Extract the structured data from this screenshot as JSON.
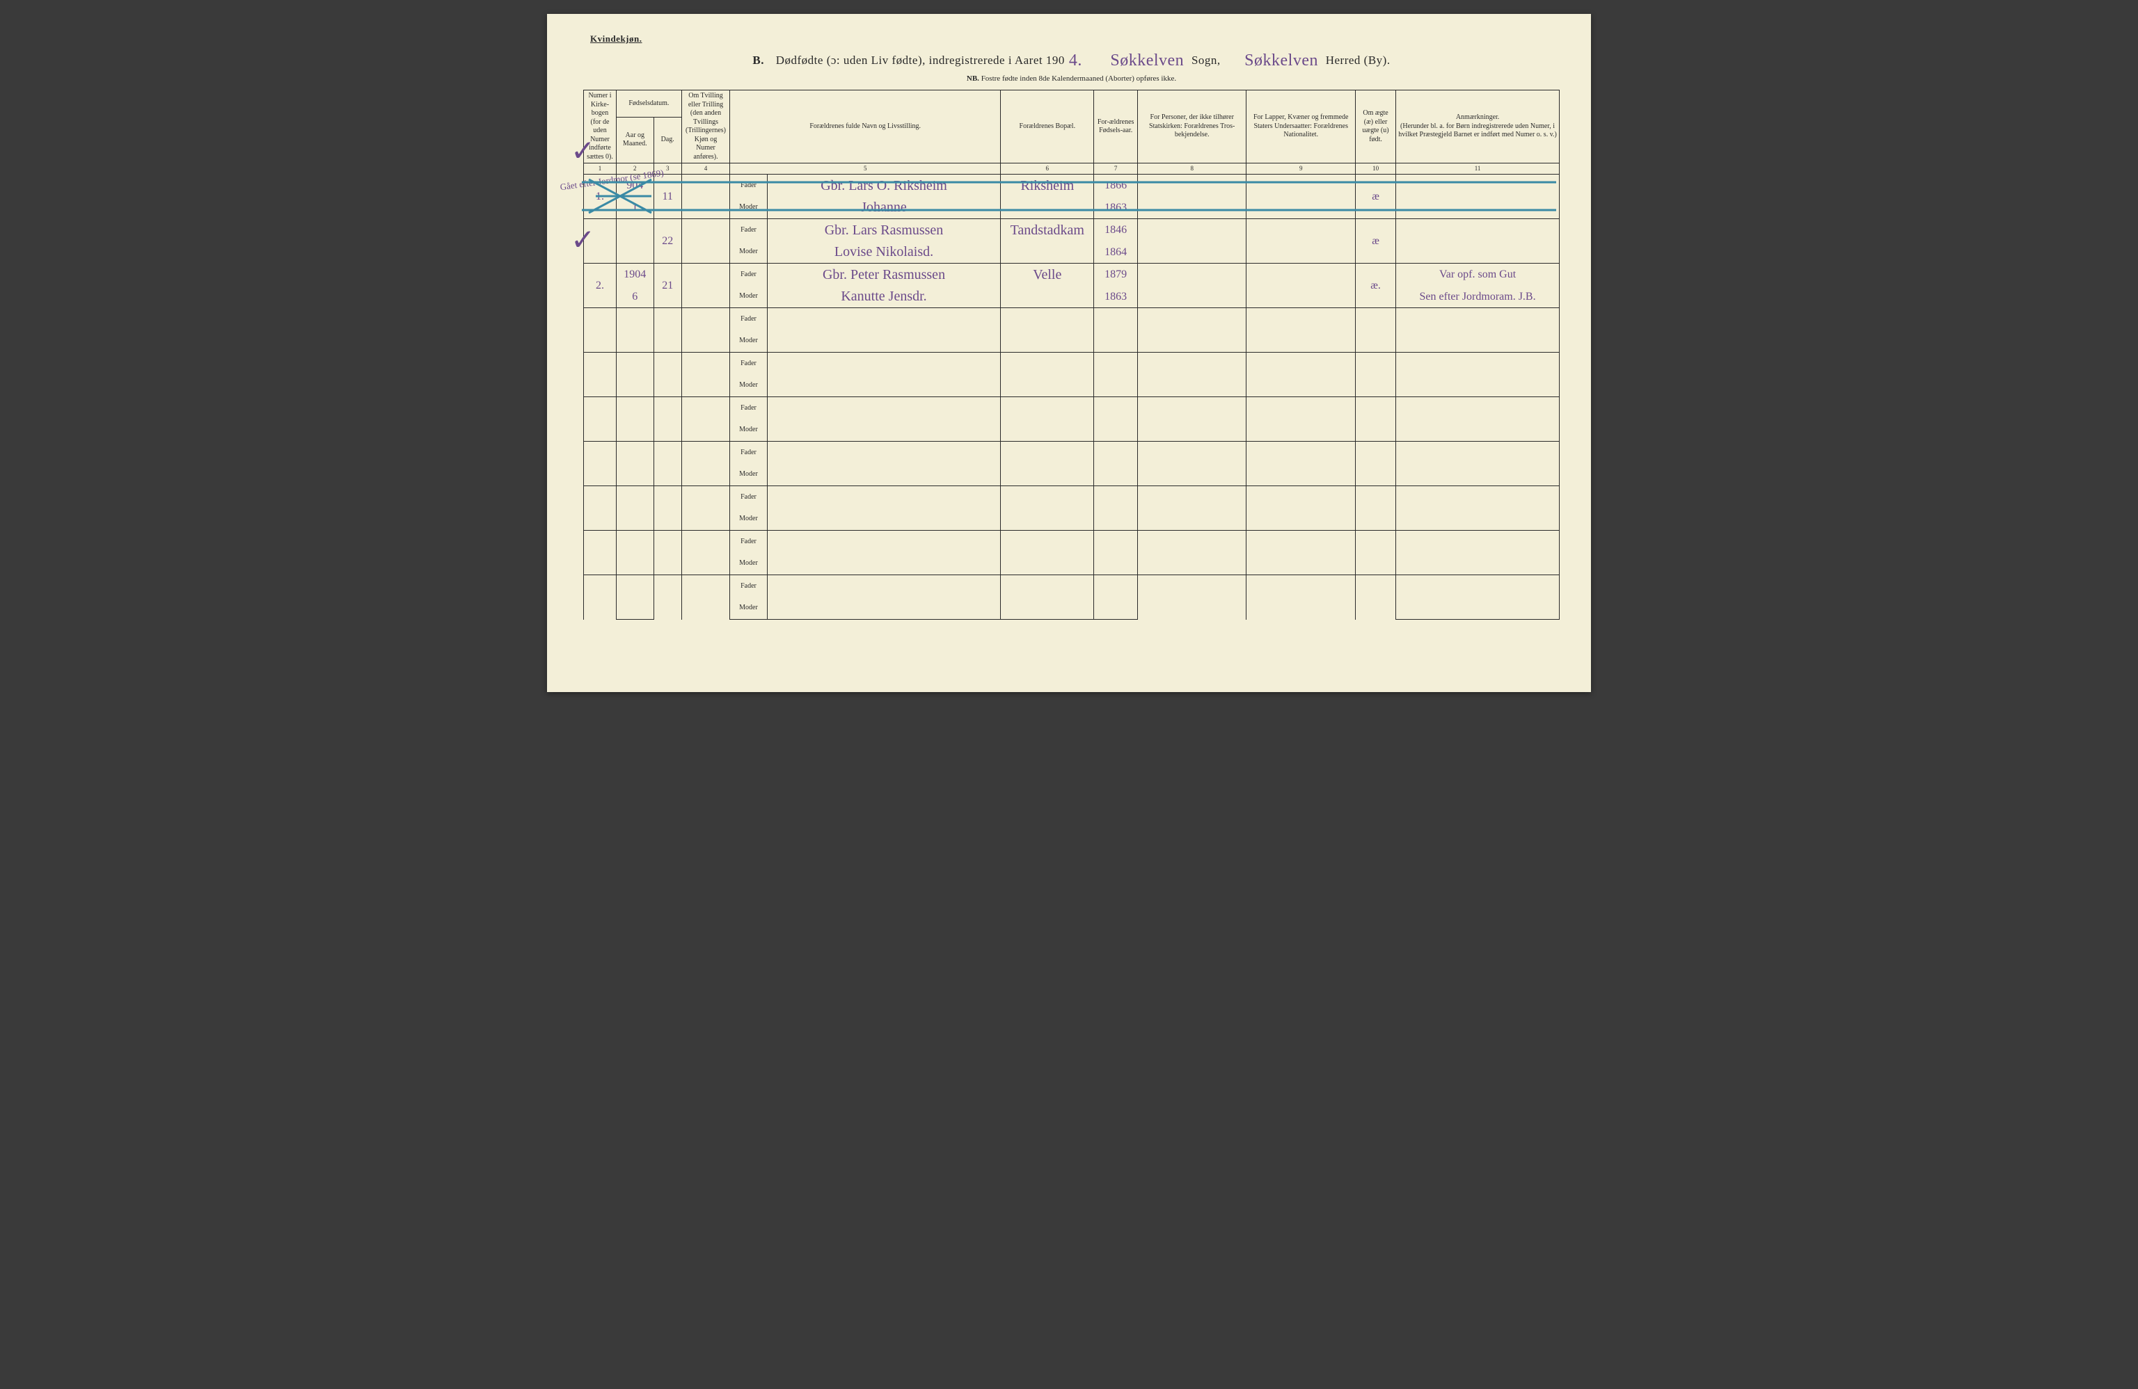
{
  "page": {
    "background_color": "#f3efd8",
    "ink_color": "#2a2a2a",
    "handwriting_color": "#6b4a8a",
    "strike_color": "#3a8aa5"
  },
  "header": {
    "gender": "Kvindekjøn.",
    "section_letter": "B.",
    "title_main": "Dødfødte (ɔ: uden Liv fødte), indregistrerede i Aaret 190",
    "year_suffix": "4.",
    "sogn_hw": "Søkkelven",
    "sogn_label": "Sogn,",
    "herred_hw": "Søkkelven",
    "herred_label": "Herred (By).",
    "subtitle_prefix": "NB.",
    "subtitle": "Fostre fødte inden 8de Kalendermaaned (Aborter) opføres ikke."
  },
  "columns": {
    "c1": "Numer i Kirke-bogen (for de uden Numer indførte sættes 0).",
    "c23_top": "Fødselsdatum.",
    "c2": "Aar og Maaned.",
    "c3": "Dag.",
    "c4": "Om Tvilling eller Trilling (den anden Tvillings (Trillingernes) Kjøn og Numer anføres).",
    "c5": "Forældrenes fulde Navn og Livsstilling.",
    "c6": "Forældrenes Bopæl.",
    "c7": "For-ældrenes Fødsels-aar.",
    "c8": "For Personer, der ikke tilhører Statskirken: Forældrenes Tros-bekjendelse.",
    "c9": "For Lapper, Kvæner og fremmede Staters Undersaatter: Forældrenes Nationalitet.",
    "c10": "Om ægte (æ) eller uægte (u) født.",
    "c11_title": "Anmærkninger.",
    "c11_sub": "(Herunder bl. a. for Børn indregistrerede uden Numer, i hvilket Præstegjeld Barnet er indført med Numer o. s. v.)",
    "fader": "Fader",
    "moder": "Moder"
  },
  "colnums": [
    "1",
    "2",
    "3",
    "4",
    "5",
    "6",
    "7",
    "8",
    "9",
    "10",
    "11"
  ],
  "entries": [
    {
      "num": "1.",
      "year_month": "904\n1",
      "day": "11",
      "father": "Gbr. Lars O. Riksheim",
      "mother": "Johanne",
      "residence": "Riksheim",
      "father_year": "1866",
      "mother_year": "1863",
      "legit": "æ",
      "notes": "",
      "check": "✓"
    },
    {
      "num": "",
      "year_month": "",
      "day": "22",
      "father": "Gbr. Lars Rasmussen",
      "mother": "Lovise Nikolaisd.",
      "residence": "Tandstadkam",
      "father_year": "1846",
      "mother_year": "1864",
      "legit": "æ",
      "notes": "",
      "struck": true,
      "margin": "Gået efter\nJordmor\n(se 1869)"
    },
    {
      "num": "2.",
      "year_month": "1904\n6",
      "day": "21",
      "father": "Gbr. Peter Rasmussen",
      "mother": "Kanutte Jensdr.",
      "residence": "Velle",
      "father_year": "1879",
      "mother_year": "1863",
      "legit": "æ.",
      "notes": "Var opf. som Gut\nSen efter Jordmoram. J.B.",
      "check": "✓"
    }
  ],
  "empty_rows": 7
}
